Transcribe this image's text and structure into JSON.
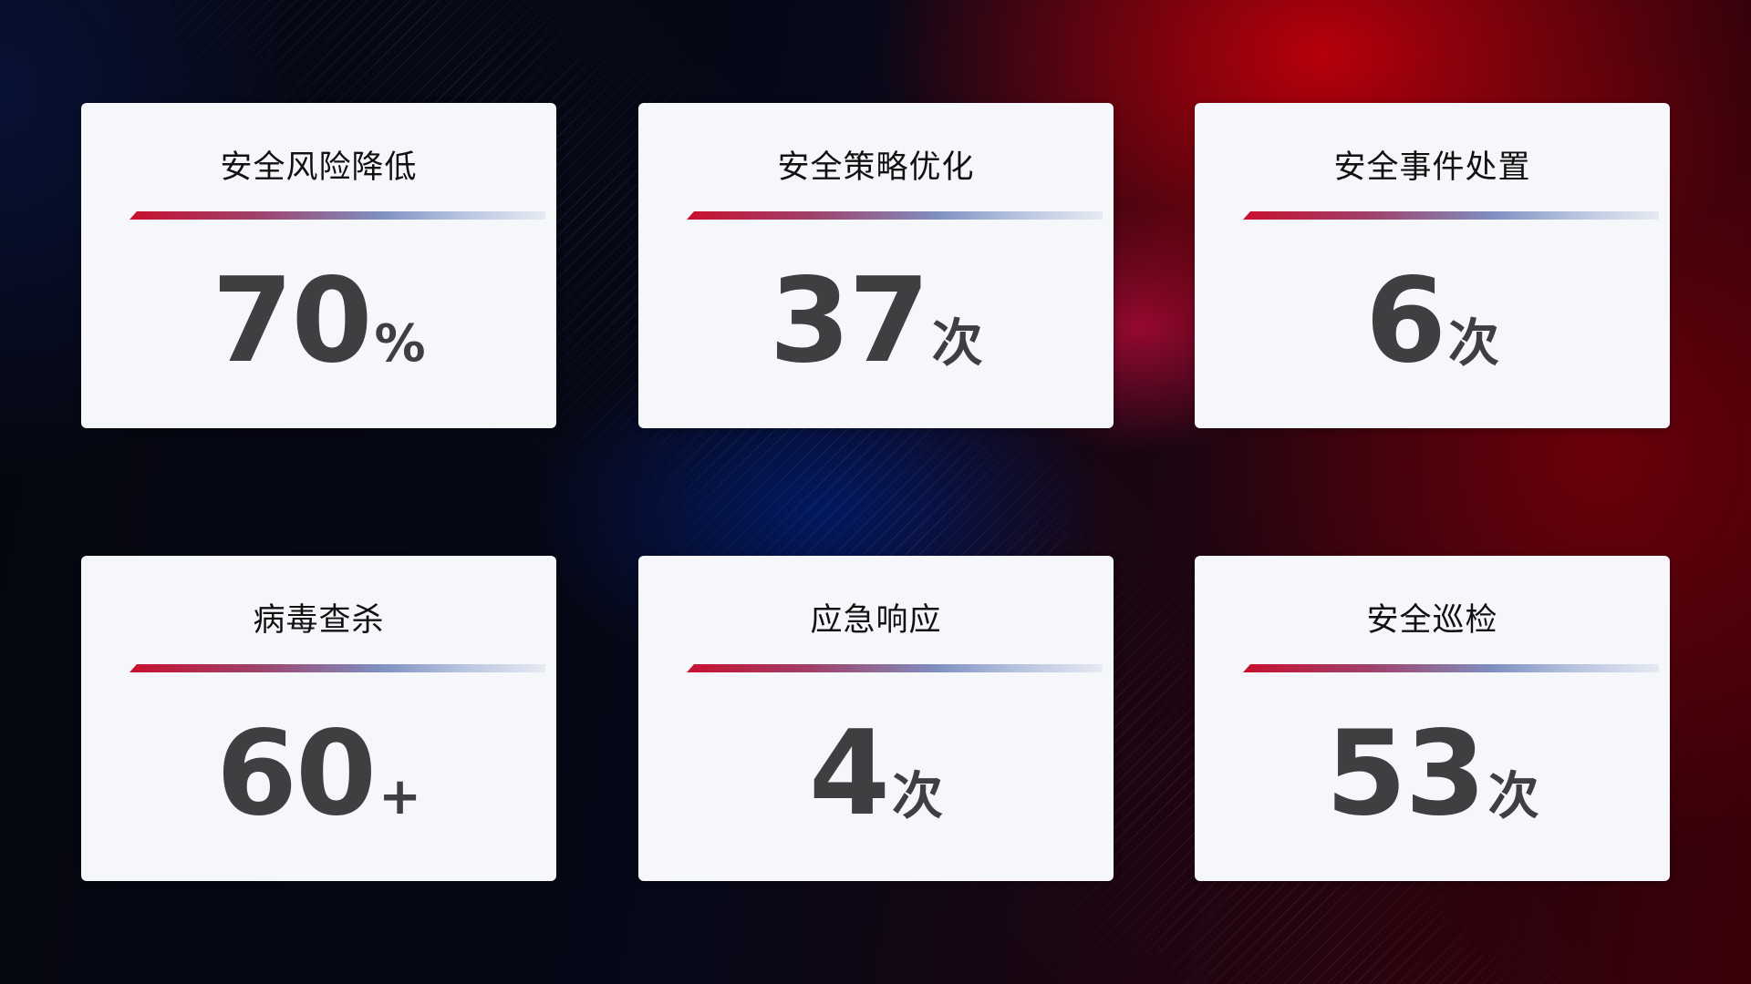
{
  "cards": [
    {
      "title": "安全风险降低",
      "value": "70",
      "unit": "%"
    },
    {
      "title": "安全策略优化",
      "value": "37",
      "unit": "次"
    },
    {
      "title": "安全事件处置",
      "value": "6",
      "unit": "次"
    },
    {
      "title": "病毒查杀",
      "value": "60",
      "unit": "+"
    },
    {
      "title": "应急响应",
      "value": "4",
      "unit": "次"
    },
    {
      "title": "安全巡检",
      "value": "53",
      "unit": "次"
    }
  ],
  "colors": {
    "accent_red": "#c8102e",
    "accent_blue": "#7f8fc0",
    "card_bg": "#f6f7fb",
    "value_text": "#3f3f41"
  }
}
